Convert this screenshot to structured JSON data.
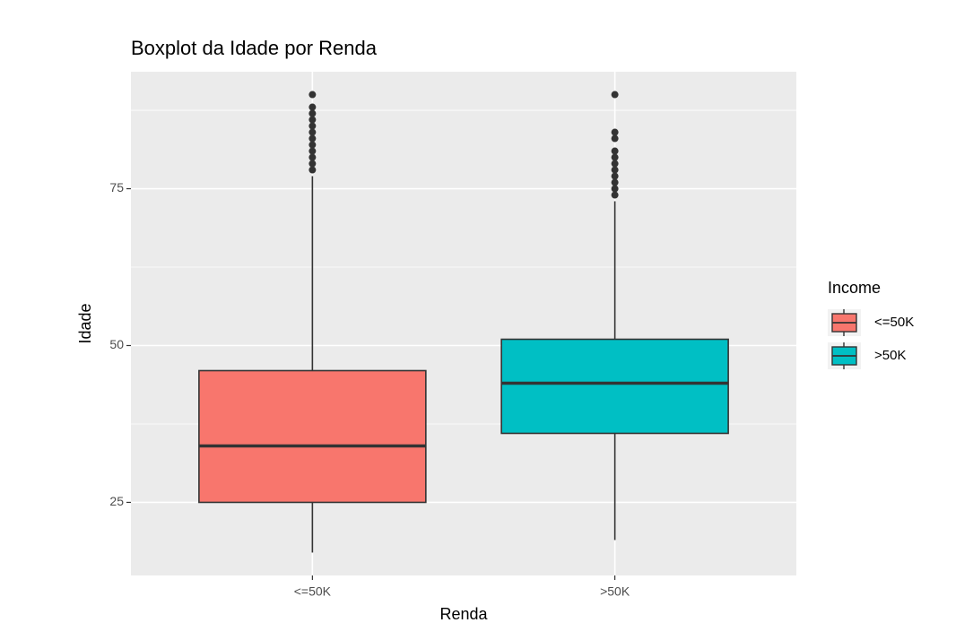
{
  "chart_data": {
    "type": "boxplot",
    "title": "Boxplot da Idade por Renda",
    "x_label": "Renda",
    "y_label": "Idade",
    "legend_title": "Income",
    "categories": [
      "<=50K",
      ">50K"
    ],
    "series": [
      {
        "name": "<=50K",
        "color": "#F8766D",
        "min": 17,
        "q1": 25,
        "median": 34,
        "q3": 46,
        "max": 77,
        "outliers": [
          78,
          79,
          80,
          81,
          82,
          83,
          84,
          85,
          86,
          87,
          88,
          90
        ]
      },
      {
        "name": ">50K",
        "color": "#00BFC4",
        "min": 19,
        "q1": 36,
        "median": 44,
        "q3": 51,
        "max": 73,
        "outliers": [
          74,
          75,
          76,
          77,
          78,
          79,
          80,
          81,
          83,
          84,
          90
        ]
      }
    ],
    "ylim": [
      13.35,
      93.65
    ],
    "yticks": [
      25,
      50,
      75
    ],
    "minor_yticks": [
      37.5,
      62.5,
      87.5
    ],
    "grid": true
  }
}
